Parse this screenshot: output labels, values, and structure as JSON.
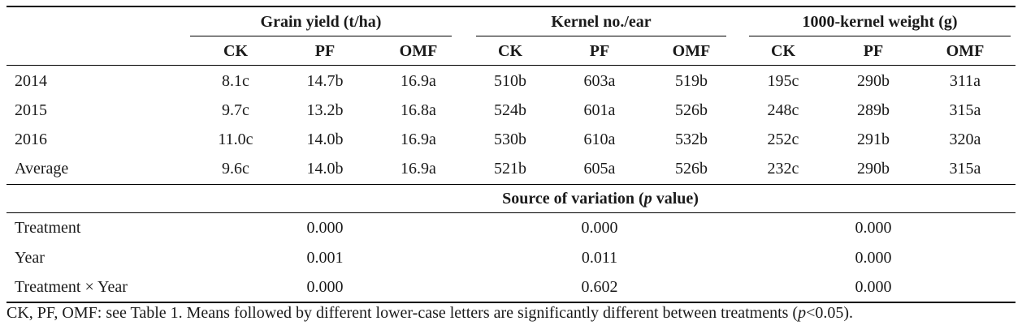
{
  "groups": [
    "Grain yield (t/ha)",
    "Kernel no./ear",
    "1000-kernel weight (g)"
  ],
  "subheads": [
    "CK",
    "PF",
    "OMF",
    "CK",
    "PF",
    "OMF",
    "CK",
    "PF",
    "OMF"
  ],
  "rows": [
    {
      "label": "2014",
      "cells": [
        "8.1c",
        "14.7b",
        "16.9a",
        "510b",
        "603a",
        "519b",
        "195c",
        "290b",
        "311a"
      ]
    },
    {
      "label": "2015",
      "cells": [
        "9.7c",
        "13.2b",
        "16.8a",
        "524b",
        "601a",
        "526b",
        "248c",
        "289b",
        "315a"
      ]
    },
    {
      "label": "2016",
      "cells": [
        "11.0c",
        "14.0b",
        "16.9a",
        "530b",
        "610a",
        "532b",
        "252c",
        "291b",
        "320a"
      ]
    },
    {
      "label": "Average",
      "cells": [
        "9.6c",
        "14.0b",
        "16.9a",
        "521b",
        "605a",
        "526b",
        "232c",
        "290b",
        "315a"
      ]
    }
  ],
  "source": {
    "title_prefix": "Source of variation (",
    "title_p": "p",
    "title_suffix": " value)",
    "rows": [
      {
        "label": "Treatment",
        "cells": [
          "0.000",
          "0.000",
          "0.000"
        ]
      },
      {
        "label": "Year",
        "cells": [
          "0.001",
          "0.011",
          "0.000"
        ]
      },
      {
        "label": "Treatment × Year",
        "cells": [
          "0.000",
          "0.602",
          "0.000"
        ]
      }
    ]
  },
  "footnote": {
    "text": "CK, PF, OMF: see Table 1. Means followed by different lower-case letters are significantly different between treatments (",
    "p": "p",
    "tail": "<0.05)."
  }
}
